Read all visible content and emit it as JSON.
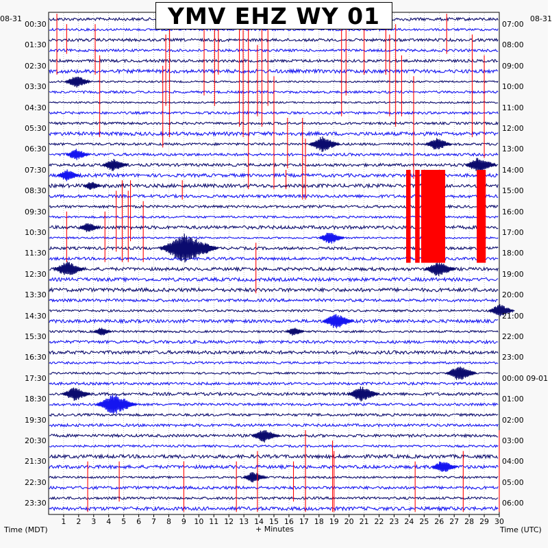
{
  "title": "YMV EHZ WY 01",
  "date_left": "08-31",
  "date_right": "08-31",
  "colors": {
    "dark_trace": "#0b0b6e",
    "bright_trace": "#1515f0",
    "event_marker": "#ff0000",
    "grid": "#000000",
    "background": "#ffffff"
  },
  "chart_data": {
    "type": "helicorder",
    "title": "YMV EHZ WY 01",
    "xlabel": "+ Minutes",
    "ylabel_left": "Time (MDT)",
    "ylabel_right": "Time (UTC)",
    "x_ticks": [
      "1",
      "2",
      "3",
      "4",
      "5",
      "6",
      "7",
      "8",
      "9",
      "10",
      "11",
      "12",
      "13",
      "14",
      "15",
      "16",
      "17",
      "18",
      "19",
      "20",
      "21",
      "22",
      "23",
      "24",
      "25",
      "26",
      "27",
      "28",
      "29",
      "30"
    ],
    "xlim": [
      0,
      30
    ],
    "rows_total": 48,
    "row_minutes": 30,
    "left_labels": [
      "00:30",
      "01:30",
      "02:30",
      "03:30",
      "04:30",
      "05:30",
      "06:30",
      "07:30",
      "08:30",
      "09:30",
      "10:30",
      "11:30",
      "12:30",
      "13:30",
      "14:30",
      "15:30",
      "16:30",
      "17:30",
      "18:30",
      "19:30",
      "20:30",
      "21:30",
      "22:30",
      "23:30"
    ],
    "right_labels": [
      "07:00",
      "08:00",
      "09:00",
      "10:00",
      "11:00",
      "12:00",
      "13:00",
      "14:00",
      "15:00",
      "16:00",
      "17:00",
      "18:00",
      "19:00",
      "20:00",
      "21:00",
      "22:00",
      "23:00",
      "00:00 09-01",
      "01:00",
      "02:00",
      "03:00",
      "04:00",
      "05:00",
      "06:00"
    ],
    "events": [
      {
        "row": 6,
        "minute": 1.8,
        "size": 10
      },
      {
        "row": 12,
        "minute": 18.2,
        "size": 12
      },
      {
        "row": 12,
        "minute": 25.8,
        "size": 10
      },
      {
        "row": 13,
        "minute": 1.8,
        "size": 9
      },
      {
        "row": 14,
        "minute": 4.3,
        "size": 10
      },
      {
        "row": 14,
        "minute": 28.6,
        "size": 12
      },
      {
        "row": 15,
        "minute": 1.2,
        "size": 9
      },
      {
        "row": 16,
        "minute": 2.8,
        "size": 7
      },
      {
        "row": 20,
        "minute": 2.6,
        "size": 8
      },
      {
        "row": 21,
        "minute": 18.7,
        "size": 10
      },
      {
        "row": 22,
        "minute": 9.0,
        "size": 22
      },
      {
        "row": 22,
        "minute": 10.5,
        "size": 8
      },
      {
        "row": 24,
        "minute": 1.2,
        "size": 12
      },
      {
        "row": 24,
        "minute": 25.9,
        "size": 12
      },
      {
        "row": 28,
        "minute": 30.0,
        "size": 10
      },
      {
        "row": 29,
        "minute": 19.1,
        "size": 12
      },
      {
        "row": 30,
        "minute": 3.5,
        "size": 7
      },
      {
        "row": 30,
        "minute": 16.3,
        "size": 7
      },
      {
        "row": 34,
        "minute": 27.3,
        "size": 12
      },
      {
        "row": 36,
        "minute": 1.7,
        "size": 11
      },
      {
        "row": 36,
        "minute": 20.8,
        "size": 12
      },
      {
        "row": 37,
        "minute": 4.3,
        "size": 16
      },
      {
        "row": 40,
        "minute": 14.3,
        "size": 11
      },
      {
        "row": 43,
        "minute": 26.2,
        "size": 10
      },
      {
        "row": 44,
        "minute": 13.6,
        "size": 9
      }
    ],
    "red_markers": [
      {
        "minute": 0.55,
        "row_start": 0,
        "row_end": 5
      },
      {
        "minute": 1.2,
        "row_start": 1,
        "row_end": 3
      },
      {
        "minute": 3.1,
        "row_start": 1,
        "row_end": 5
      },
      {
        "minute": 3.4,
        "row_start": 4,
        "row_end": 11
      },
      {
        "minute": 7.6,
        "row_start": 5,
        "row_end": 12
      },
      {
        "minute": 7.8,
        "row_start": 2,
        "row_end": 8
      },
      {
        "minute": 8.05,
        "row_start": 0,
        "row_end": 11
      },
      {
        "minute": 10.35,
        "row_start": 1,
        "row_end": 7
      },
      {
        "minute": 11.05,
        "row_start": 0,
        "row_end": 8
      },
      {
        "minute": 11.3,
        "row_start": 0,
        "row_end": 5
      },
      {
        "minute": 12.7,
        "row_start": 0,
        "row_end": 10
      },
      {
        "minute": 12.95,
        "row_start": 1,
        "row_end": 11
      },
      {
        "minute": 13.3,
        "row_start": 0,
        "row_end": 16
      },
      {
        "minute": 13.9,
        "row_start": 3,
        "row_end": 9
      },
      {
        "minute": 14.2,
        "row_start": 0,
        "row_end": 10
      },
      {
        "minute": 14.6,
        "row_start": 0,
        "row_end": 8
      },
      {
        "minute": 15.0,
        "row_start": 6,
        "row_end": 16
      },
      {
        "minute": 15.9,
        "row_start": 10,
        "row_end": 14
      },
      {
        "minute": 16.9,
        "row_start": 10,
        "row_end": 17
      },
      {
        "minute": 17.1,
        "row_start": 12,
        "row_end": 17
      },
      {
        "minute": 19.5,
        "row_start": 1,
        "row_end": 9
      },
      {
        "minute": 19.8,
        "row_start": 0,
        "row_end": 7
      },
      {
        "minute": 21.0,
        "row_start": 1,
        "row_end": 5
      },
      {
        "minute": 22.45,
        "row_start": 0,
        "row_end": 5
      },
      {
        "minute": 22.7,
        "row_start": 2,
        "row_end": 9
      },
      {
        "minute": 23.1,
        "row_start": 1,
        "row_end": 10
      },
      {
        "minute": 23.5,
        "row_start": 4,
        "row_end": 9
      },
      {
        "minute": 24.3,
        "row_start": 6,
        "row_end": 15
      },
      {
        "minute": 26.5,
        "row_start": 0,
        "row_end": 3
      },
      {
        "minute": 28.2,
        "row_start": 2,
        "row_end": 11
      },
      {
        "minute": 29.0,
        "row_start": 4,
        "row_end": 13
      },
      {
        "minute": 8.9,
        "row_start": 16,
        "row_end": 17
      },
      {
        "minute": 15.8,
        "row_start": 15,
        "row_end": 16
      },
      {
        "minute": 4.5,
        "row_start": 17,
        "row_end": 22
      },
      {
        "minute": 4.9,
        "row_start": 16,
        "row_end": 23
      },
      {
        "minute": 5.3,
        "row_start": 17,
        "row_end": 23
      },
      {
        "minute": 5.45,
        "row_start": 16,
        "row_end": 21
      },
      {
        "minute": 6.3,
        "row_start": 18,
        "row_end": 23
      },
      {
        "minute": 1.2,
        "row_start": 19,
        "row_end": 23
      },
      {
        "minute": 3.75,
        "row_start": 19,
        "row_end": 23
      },
      {
        "minute": 13.8,
        "row_start": 22,
        "row_end": 26
      },
      {
        "minute": 17.1,
        "row_start": 40,
        "row_end": 47
      },
      {
        "minute": 18.9,
        "row_start": 41,
        "row_end": 47
      },
      {
        "minute": 19.0,
        "row_start": 42,
        "row_end": 47
      },
      {
        "minute": 2.6,
        "row_start": 43,
        "row_end": 47
      },
      {
        "minute": 4.7,
        "row_start": 43,
        "row_end": 46
      },
      {
        "minute": 9.0,
        "row_start": 43,
        "row_end": 47
      },
      {
        "minute": 12.5,
        "row_start": 43,
        "row_end": 47
      },
      {
        "minute": 13.9,
        "row_start": 42,
        "row_end": 47
      },
      {
        "minute": 16.3,
        "row_start": 43,
        "row_end": 46
      },
      {
        "minute": 24.4,
        "row_start": 43,
        "row_end": 47
      },
      {
        "minute": 27.6,
        "row_start": 42,
        "row_end": 47
      },
      {
        "minute": 30.0,
        "row_start": 40,
        "row_end": 47
      }
    ],
    "red_blocks": [
      {
        "minute_start": 23.8,
        "minute_end": 24.1,
        "row_start": 15,
        "row_end": 23
      },
      {
        "minute_start": 24.4,
        "minute_end": 24.7,
        "row_start": 15,
        "row_end": 23
      },
      {
        "minute_start": 24.8,
        "minute_end": 26.4,
        "row_start": 15,
        "row_end": 23
      },
      {
        "minute_start": 28.5,
        "minute_end": 29.1,
        "row_start": 15,
        "row_end": 23
      }
    ]
  }
}
